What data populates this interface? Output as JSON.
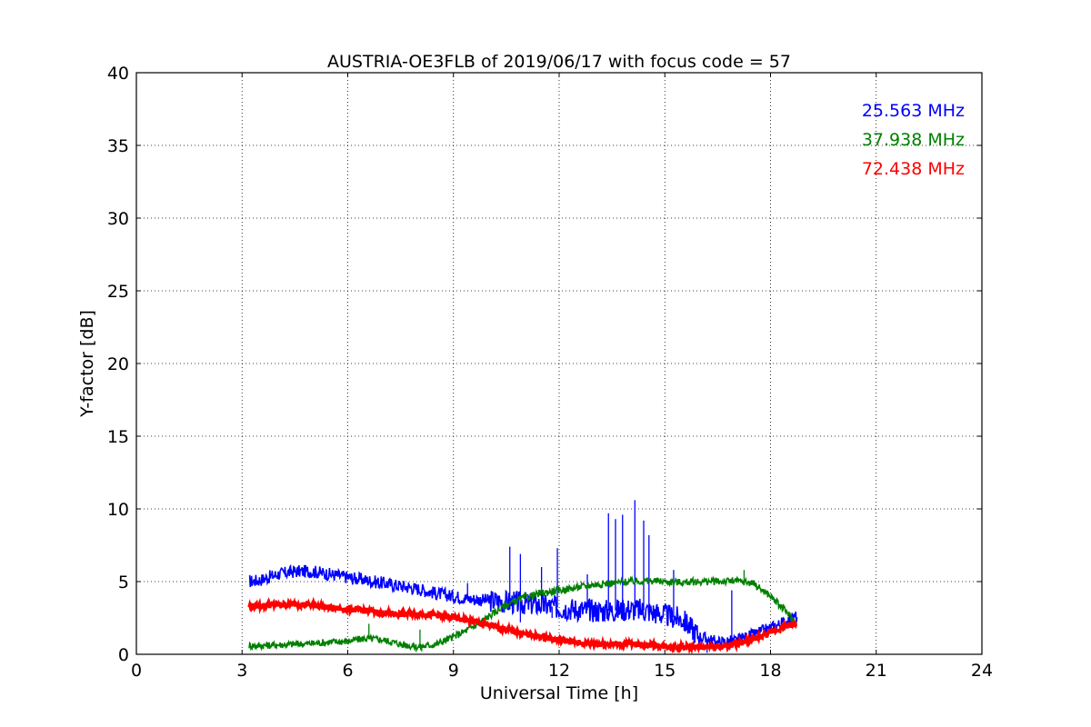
{
  "chart_data": {
    "type": "line",
    "title": "AUSTRIA-OE3FLB of 2019/06/17 with focus code = 57",
    "xlabel": "Universal Time [h]",
    "ylabel": "Y-factor [dB]",
    "xlim": [
      0,
      24
    ],
    "ylim": [
      0,
      40
    ],
    "xticks": [
      "0",
      "3",
      "6",
      "9",
      "12",
      "15",
      "18",
      "21",
      "24"
    ],
    "yticks": [
      "0",
      "5",
      "10",
      "15",
      "20",
      "25",
      "30",
      "35",
      "40"
    ],
    "grid": true,
    "legend_placement": "top-right",
    "series": [
      {
        "name": "25.563 MHz",
        "color": "#0000ff",
        "x": [
          3.2,
          3.5,
          4.0,
          4.5,
          5.0,
          5.5,
          6.0,
          6.5,
          7.0,
          7.5,
          8.0,
          8.5,
          9.0,
          9.5,
          10.0,
          10.5,
          11.0,
          11.5,
          12.0,
          12.5,
          13.0,
          13.5,
          14.0,
          14.5,
          15.0,
          15.5,
          16.0,
          16.5,
          17.0,
          17.5,
          18.0,
          18.5,
          18.75
        ],
        "values": [
          5.0,
          5.1,
          5.5,
          5.7,
          5.7,
          5.5,
          5.3,
          5.1,
          4.9,
          4.7,
          4.5,
          4.2,
          4.0,
          3.8,
          3.7,
          3.6,
          3.5,
          3.4,
          3.2,
          3.1,
          3.0,
          3.0,
          3.1,
          3.0,
          2.7,
          2.4,
          1.2,
          0.8,
          0.9,
          1.3,
          1.8,
          2.3,
          2.6
        ],
        "spikes": [
          {
            "x": 10.6,
            "y": 7.4
          },
          {
            "x": 10.9,
            "y": 6.9
          },
          {
            "x": 11.5,
            "y": 6.0
          },
          {
            "x": 11.95,
            "y": 7.3
          },
          {
            "x": 13.4,
            "y": 9.7
          },
          {
            "x": 13.6,
            "y": 9.3
          },
          {
            "x": 13.8,
            "y": 9.6
          },
          {
            "x": 14.15,
            "y": 10.6
          },
          {
            "x": 14.4,
            "y": 9.2
          },
          {
            "x": 14.55,
            "y": 8.2
          },
          {
            "x": 15.25,
            "y": 5.8
          },
          {
            "x": 16.9,
            "y": 4.4
          },
          {
            "x": 9.4,
            "y": 4.9
          },
          {
            "x": 12.8,
            "y": 5.5
          }
        ],
        "dips": [
          {
            "x": 10.9,
            "y": 2.2
          },
          {
            "x": 11.8,
            "y": 2.5
          },
          {
            "x": 16.2,
            "y": 0.1
          }
        ]
      },
      {
        "name": "37.938 MHz",
        "color": "#008000",
        "x": [
          3.2,
          3.5,
          4.0,
          4.5,
          5.0,
          5.5,
          6.0,
          6.5,
          7.0,
          7.5,
          8.0,
          8.5,
          9.0,
          9.5,
          10.0,
          10.5,
          11.0,
          11.5,
          12.0,
          12.5,
          13.0,
          13.5,
          14.0,
          14.5,
          15.0,
          15.5,
          16.0,
          16.5,
          17.0,
          17.5,
          18.0,
          18.5,
          18.75
        ],
        "values": [
          0.6,
          0.6,
          0.65,
          0.7,
          0.75,
          0.85,
          0.9,
          1.1,
          1.0,
          0.7,
          0.5,
          0.7,
          1.2,
          1.8,
          2.6,
          3.4,
          3.9,
          4.2,
          4.4,
          4.6,
          4.8,
          4.9,
          5.0,
          5.05,
          5.0,
          4.95,
          5.0,
          5.0,
          5.05,
          4.9,
          4.0,
          2.8,
          2.0
        ],
        "spikes": [
          {
            "x": 6.6,
            "y": 2.1
          },
          {
            "x": 8.05,
            "y": 1.7
          },
          {
            "x": 17.25,
            "y": 5.8
          }
        ],
        "dips": [
          {
            "x": 8.1,
            "y": 0.2
          }
        ]
      },
      {
        "name": "72.438 MHz",
        "color": "#ff0000",
        "x": [
          3.2,
          3.5,
          4.0,
          4.5,
          5.0,
          5.5,
          6.0,
          6.5,
          7.0,
          7.5,
          8.0,
          8.5,
          9.0,
          9.5,
          10.0,
          10.5,
          11.0,
          11.5,
          12.0,
          12.5,
          13.0,
          13.5,
          14.0,
          14.5,
          15.0,
          15.5,
          16.0,
          16.5,
          17.0,
          17.5,
          18.0,
          18.5,
          18.75
        ],
        "values": [
          3.3,
          3.35,
          3.4,
          3.45,
          3.4,
          3.2,
          3.1,
          3.0,
          2.85,
          2.75,
          2.8,
          2.7,
          2.5,
          2.3,
          2.0,
          1.7,
          1.4,
          1.2,
          1.0,
          0.8,
          0.7,
          0.7,
          0.7,
          0.65,
          0.55,
          0.5,
          0.5,
          0.5,
          0.7,
          1.0,
          1.5,
          2.0,
          2.1
        ],
        "spikes": [],
        "dips": []
      }
    ]
  }
}
